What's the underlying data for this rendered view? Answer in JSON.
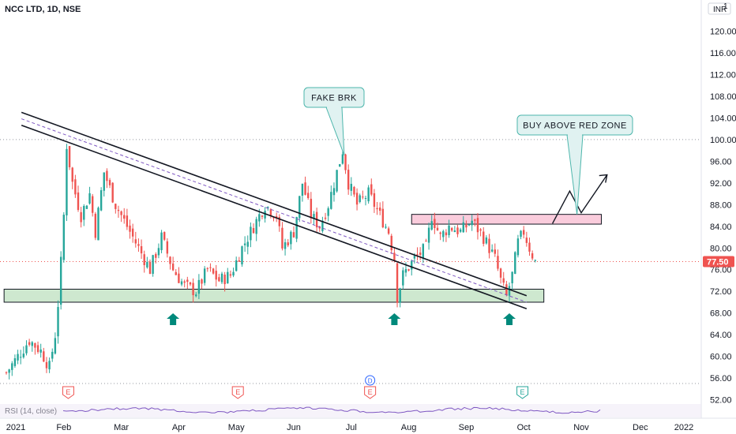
{
  "header": {
    "title": "NCC LTD, 1D, NSE"
  },
  "currency_badge": "INR",
  "top_tick": "1",
  "chart_data": {
    "type": "candlestick",
    "title": "NCC LTD, 1D, NSE",
    "ylim": [
      50,
      124
    ],
    "y_ticks": [
      52.0,
      56.0,
      60.0,
      64.0,
      68.0,
      72.0,
      76.0,
      80.0,
      84.0,
      88.0,
      92.0,
      96.0,
      100.0,
      104.0,
      108.0,
      112.0,
      116.0,
      120.0
    ],
    "y_tick_labels": [
      "52.00",
      "56.00",
      "60.00",
      "64.00",
      "68.00",
      "72.00",
      "76.00",
      "80.00",
      "84.00",
      "88.00",
      "92.00",
      "96.00",
      "100.00",
      "104.00",
      "108.00",
      "112.00",
      "116.00",
      "120.00"
    ],
    "x_labels": [
      "2021",
      "Feb",
      "Mar",
      "Apr",
      "May",
      "Jun",
      "Jul",
      "Aug",
      "Sep",
      "Oct",
      "Nov",
      "Dec",
      "2022"
    ],
    "last_price": "77.50",
    "close_path": [
      {
        "m": 0.0,
        "v": 57
      },
      {
        "m": 0.2,
        "v": 60
      },
      {
        "m": 0.4,
        "v": 63
      },
      {
        "m": 0.6,
        "v": 61
      },
      {
        "m": 0.75,
        "v": 58
      },
      {
        "m": 0.85,
        "v": 64
      },
      {
        "m": 0.92,
        "v": 72
      },
      {
        "m": 1.0,
        "v": 86
      },
      {
        "m": 1.05,
        "v": 99
      },
      {
        "m": 1.15,
        "v": 92
      },
      {
        "m": 1.3,
        "v": 86
      },
      {
        "m": 1.45,
        "v": 90
      },
      {
        "m": 1.55,
        "v": 83
      },
      {
        "m": 1.7,
        "v": 94
      },
      {
        "m": 1.9,
        "v": 88
      },
      {
        "m": 2.1,
        "v": 84
      },
      {
        "m": 2.3,
        "v": 80
      },
      {
        "m": 2.5,
        "v": 76
      },
      {
        "m": 2.7,
        "v": 82
      },
      {
        "m": 2.9,
        "v": 76
      },
      {
        "m": 3.1,
        "v": 73
      },
      {
        "m": 3.3,
        "v": 72
      },
      {
        "m": 3.5,
        "v": 76
      },
      {
        "m": 3.7,
        "v": 74
      },
      {
        "m": 3.9,
        "v": 75
      },
      {
        "m": 4.1,
        "v": 80
      },
      {
        "m": 4.3,
        "v": 84
      },
      {
        "m": 4.5,
        "v": 88
      },
      {
        "m": 4.7,
        "v": 86
      },
      {
        "m": 4.8,
        "v": 80
      },
      {
        "m": 5.0,
        "v": 83
      },
      {
        "m": 5.15,
        "v": 92
      },
      {
        "m": 5.3,
        "v": 86
      },
      {
        "m": 5.45,
        "v": 84
      },
      {
        "m": 5.6,
        "v": 88
      },
      {
        "m": 5.75,
        "v": 94
      },
      {
        "m": 5.85,
        "v": 98
      },
      {
        "m": 5.95,
        "v": 92
      },
      {
        "m": 6.1,
        "v": 88
      },
      {
        "m": 6.3,
        "v": 90
      },
      {
        "m": 6.5,
        "v": 86
      },
      {
        "m": 6.65,
        "v": 83
      },
      {
        "m": 6.75,
        "v": 78
      },
      {
        "m": 6.8,
        "v": 71
      },
      {
        "m": 6.9,
        "v": 75
      },
      {
        "m": 7.1,
        "v": 78
      },
      {
        "m": 7.3,
        "v": 80
      },
      {
        "m": 7.4,
        "v": 86
      },
      {
        "m": 7.55,
        "v": 82
      },
      {
        "m": 7.7,
        "v": 84
      },
      {
        "m": 7.9,
        "v": 83
      },
      {
        "m": 8.1,
        "v": 85
      },
      {
        "m": 8.3,
        "v": 82
      },
      {
        "m": 8.5,
        "v": 78
      },
      {
        "m": 8.6,
        "v": 74
      },
      {
        "m": 8.7,
        "v": 71
      },
      {
        "m": 8.8,
        "v": 75
      },
      {
        "m": 8.9,
        "v": 81
      },
      {
        "m": 9.0,
        "v": 83
      },
      {
        "m": 9.1,
        "v": 80
      },
      {
        "m": 9.2,
        "v": 77.5
      }
    ],
    "channel": {
      "start": {
        "m": 0.95,
        "v": 101.5
      },
      "end": {
        "m": 9.05,
        "v": 70
      }
    },
    "support_zone": {
      "from": 70,
      "to": 72.4,
      "m_start": -0.3,
      "m_end": 9.35
    },
    "red_zone": {
      "from": 84.4,
      "to": 86.2,
      "m_start": 7.05,
      "m_end": 10.35
    },
    "hlines": [
      100,
      77.5,
      55
    ],
    "projection": [
      {
        "m": 9.5,
        "v": 84.5
      },
      {
        "m": 9.8,
        "v": 90.5
      },
      {
        "m": 10.0,
        "v": 86.5
      },
      {
        "m": 10.45,
        "v": 93.5
      }
    ],
    "arrow_months": [
      2.9,
      6.75,
      8.75
    ],
    "earnings_months": [
      1.05,
      4.0,
      6.3,
      8.95
    ],
    "dividend_month": 6.3,
    "annotations": [
      {
        "text": "FAKE BRK",
        "m": 5.85,
        "v": 98
      },
      {
        "text": "BUY ABOVE RED ZONE",
        "m": 8.8,
        "v": 86.2
      }
    ]
  },
  "markers": {
    "earnings_label": "E",
    "dividend_label": "D"
  },
  "rsi": {
    "label": "RSI (14, close)"
  },
  "colors": {
    "up": "#26a69a",
    "down": "#ef5350",
    "support": "#a5d6a7",
    "resistance": "#f8bbd0",
    "price_tag": "#ef5350",
    "arrow": "#00897b"
  }
}
